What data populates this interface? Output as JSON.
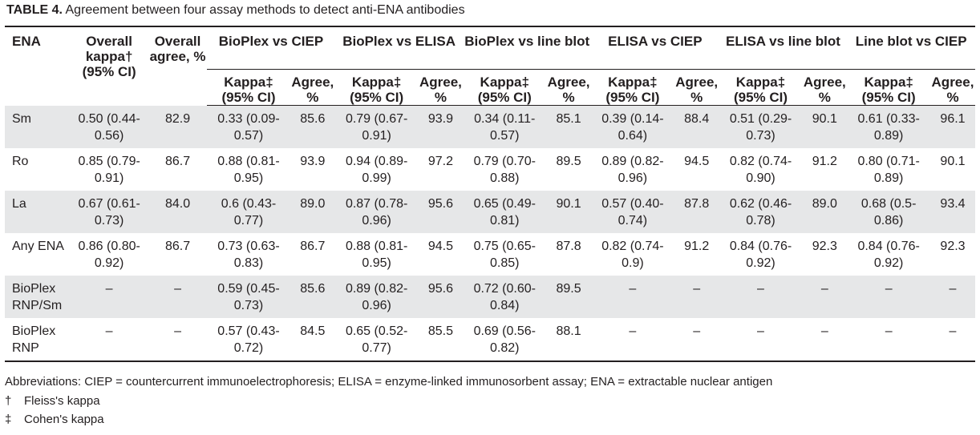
{
  "caption": {
    "label": "TABLE 4.",
    "text": " Agreement between four assay methods to detect anti-ENA antibodies"
  },
  "headers": {
    "ena": "ENA",
    "overall_kappa": "Overall kappa† (95% CI)",
    "overall_agree": "Overall agree, %",
    "pairs": [
      "BioPlex vs CIEP",
      "BioPlex vs ELISA",
      "BioPlex vs line blot",
      "ELISA vs CIEP",
      "ELISA vs line blot",
      "Line blot vs CIEP"
    ],
    "kappa": "Kappa‡ (95% CI)",
    "agree": "Agree, %"
  },
  "rows": [
    {
      "ena": "Sm",
      "overall_kappa": "0.50 (0.44-0.56)",
      "overall_agree": "82.9",
      "cells": [
        [
          "0.33 (0.09-0.57)",
          "85.6"
        ],
        [
          "0.79 (0.67-0.91)",
          "93.9"
        ],
        [
          "0.34 (0.11-0.57)",
          "85.1"
        ],
        [
          "0.39 (0.14-0.64)",
          "88.4"
        ],
        [
          "0.51 (0.29-0.73)",
          "90.1"
        ],
        [
          "0.61 (0.33-0.89)",
          "96.1"
        ]
      ]
    },
    {
      "ena": "Ro",
      "overall_kappa": "0.85 (0.79-0.91)",
      "overall_agree": "86.7",
      "cells": [
        [
          "0.88 (0.81-0.95)",
          "93.9"
        ],
        [
          "0.94 (0.89-0.99)",
          "97.2"
        ],
        [
          "0.79 (0.70-0.88)",
          "89.5"
        ],
        [
          "0.89 (0.82-0.96)",
          "94.5"
        ],
        [
          "0.82 (0.74-0.90)",
          "91.2"
        ],
        [
          "0.80 (0.71-0.89)",
          "90.1"
        ]
      ]
    },
    {
      "ena": "La",
      "overall_kappa": "0.67 (0.61-0.73)",
      "overall_agree": "84.0",
      "cells": [
        [
          "0.6 (0.43-0.77)",
          "89.0"
        ],
        [
          "0.87 (0.78-0.96)",
          "95.6"
        ],
        [
          "0.65 (0.49-0.81)",
          "90.1"
        ],
        [
          "0.57 (0.40-0.74)",
          "87.8"
        ],
        [
          "0.62 (0.46-0.78)",
          "89.0"
        ],
        [
          "0.68 (0.5-0.86)",
          "93.4"
        ]
      ]
    },
    {
      "ena": "Any ENA",
      "overall_kappa": "0.86 (0.80-0.92)",
      "overall_agree": "86.7",
      "cells": [
        [
          "0.73 (0.63-0.83)",
          "86.7"
        ],
        [
          "0.88 (0.81-0.95)",
          "94.5"
        ],
        [
          "0.75 (0.65-0.85)",
          "87.8"
        ],
        [
          "0.82 (0.74-0.9)",
          "91.2"
        ],
        [
          "0.84 (0.76-0.92)",
          "92.3"
        ],
        [
          "0.84 (0.76-0.92)",
          "92.3"
        ]
      ]
    },
    {
      "ena": "BioPlex RNP/Sm",
      "overall_kappa": "–",
      "overall_agree": "–",
      "cells": [
        [
          "0.59 (0.45-0.73)",
          "85.6"
        ],
        [
          "0.89 (0.82-0.96)",
          "95.6"
        ],
        [
          "0.72 (0.60-0.84)",
          "89.5"
        ],
        [
          "–",
          "–"
        ],
        [
          "–",
          "–"
        ],
        [
          "–",
          "–"
        ]
      ]
    },
    {
      "ena": "BioPlex RNP",
      "overall_kappa": "–",
      "overall_agree": "–",
      "cells": [
        [
          "0.57 (0.43-0.72)",
          "84.5"
        ],
        [
          "0.65 (0.52-0.77)",
          "85.5"
        ],
        [
          "0.69 (0.56-0.82)",
          "88.1"
        ],
        [
          "–",
          "–"
        ],
        [
          "–",
          "–"
        ],
        [
          "–",
          "–"
        ]
      ]
    }
  ],
  "footnotes": {
    "abbreviations": "Abbreviations: CIEP = countercurrent immunoelectrophoresis; ELISA = enzyme-linked immunosorbent assay; ENA = extractable nuclear antigen",
    "dagger_symbol": "†",
    "dagger_text": "Fleiss's kappa",
    "ddagger_symbol": "‡",
    "ddagger_text": "Cohen's kappa"
  }
}
